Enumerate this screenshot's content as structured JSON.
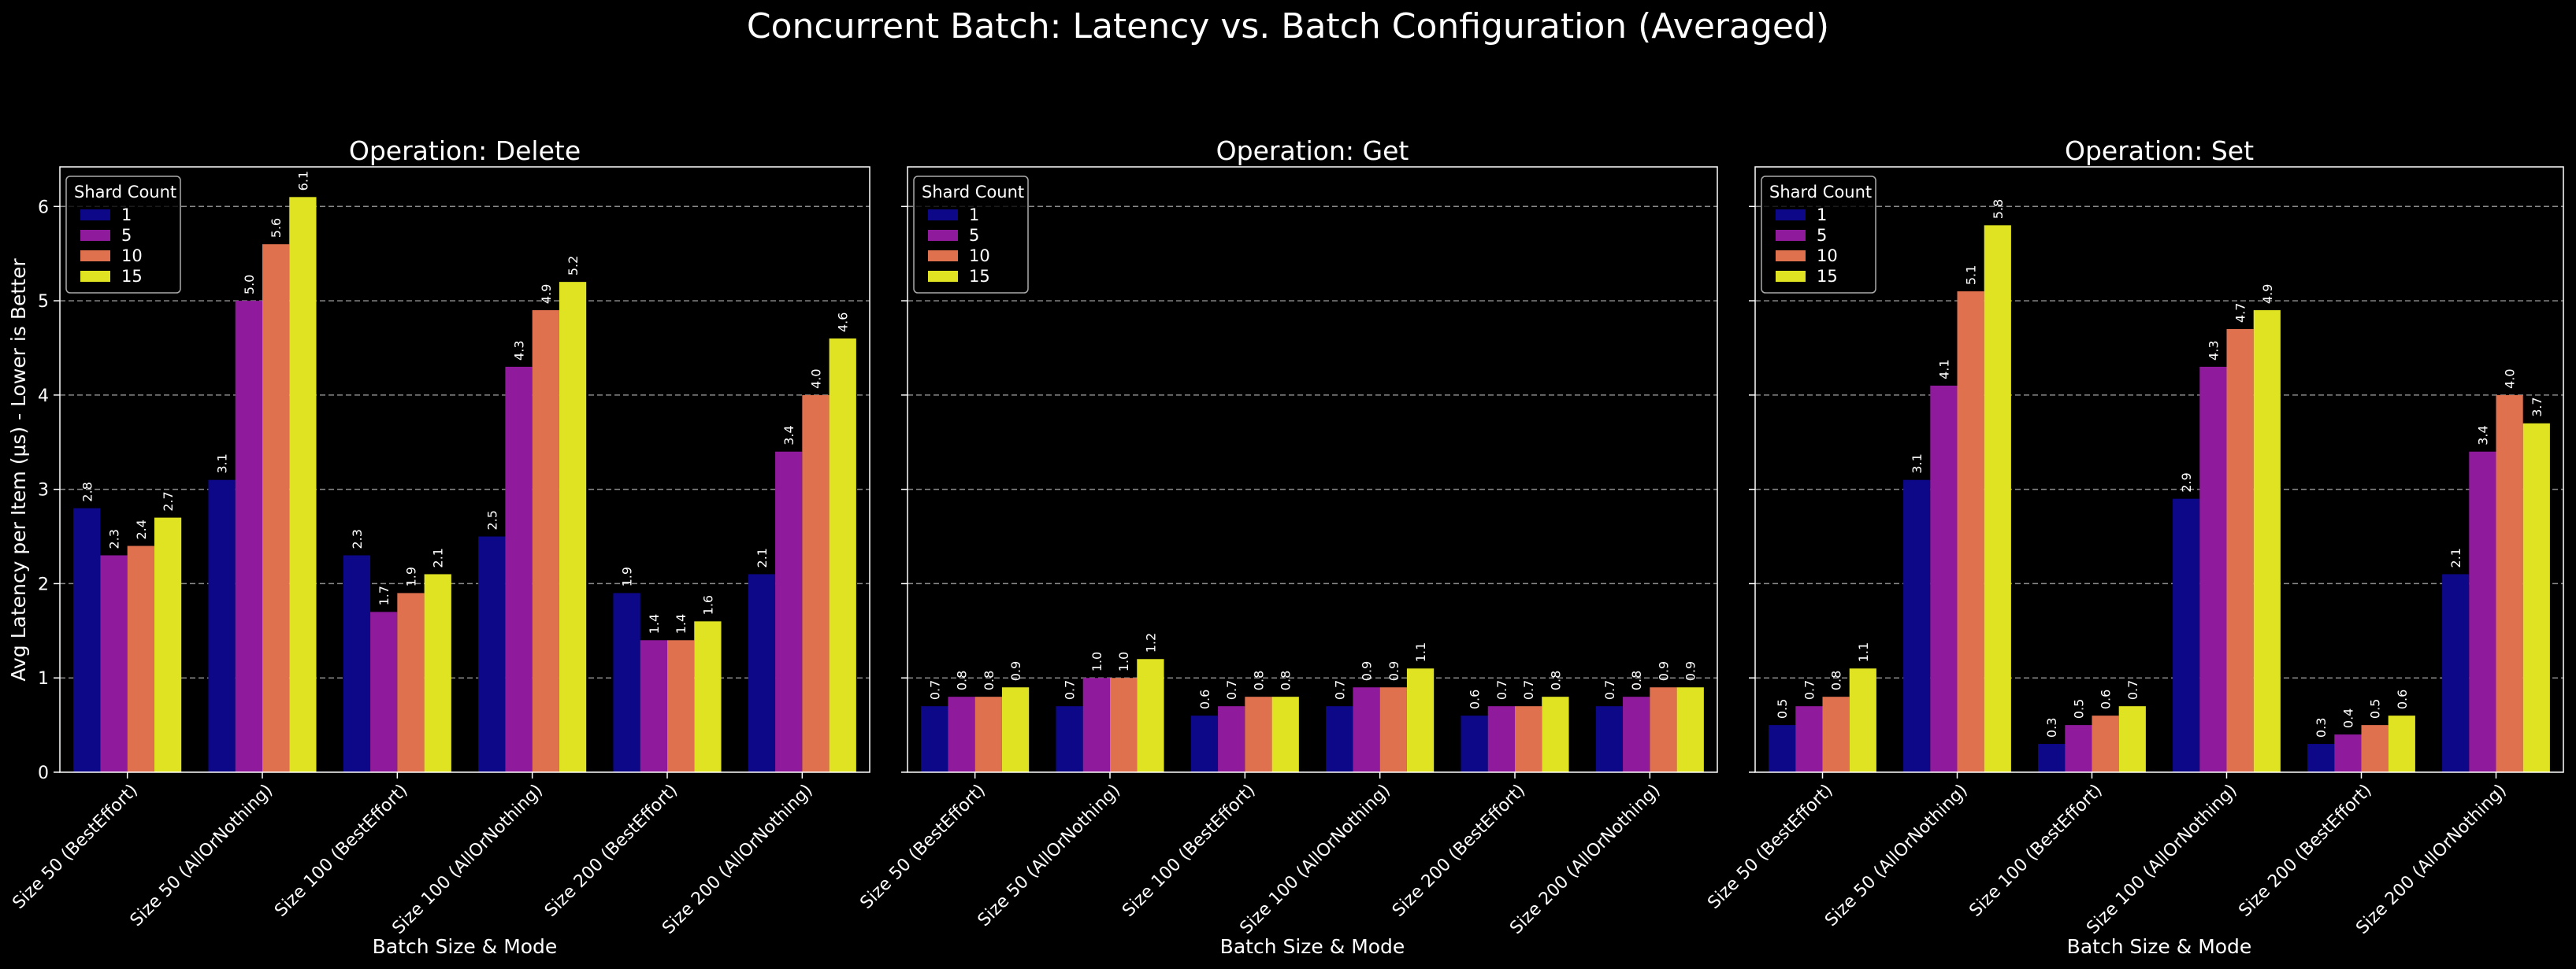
{
  "figure_title": "Concurrent Batch: Latency vs. Batch Configuration (Averaged)",
  "ylabel": "Avg Latency per Item (µs) - Lower is Better",
  "colors": {
    "background": "#000000",
    "text": "#ffffff",
    "grid": "#8a8a8a",
    "series": [
      "#0d0887",
      "#8f1a9c",
      "#e0714f",
      "#dfe321"
    ]
  },
  "chart_data": [
    {
      "type": "bar",
      "title": "Operation: Delete",
      "xlabel": "Batch Size & Mode",
      "categories": [
        "Size 50 (BestEffort)",
        "Size 50 (AllOrNothing)",
        "Size 100 (BestEffort)",
        "Size 100 (AllOrNothing)",
        "Size 200 (BestEffort)",
        "Size 200 (AllOrNothing)"
      ],
      "ylim": [
        0,
        6.42
      ],
      "yticks": [
        "0",
        "1",
        "2",
        "3",
        "4",
        "5",
        "6"
      ],
      "grid": true,
      "legend": {
        "title": "Shard Count",
        "placement": "top-left"
      },
      "series": [
        {
          "name": "1",
          "values": [
            2.8,
            3.1,
            2.3,
            2.5,
            1.9,
            2.1
          ],
          "labels": [
            "2.8",
            "3.1",
            "2.3",
            "2.5",
            "1.9",
            "2.1"
          ]
        },
        {
          "name": "5",
          "values": [
            2.3,
            5.0,
            1.7,
            4.3,
            1.4,
            3.4
          ],
          "labels": [
            "2.3",
            "5.0",
            "1.7",
            "4.3",
            "1.4",
            "3.4"
          ]
        },
        {
          "name": "10",
          "values": [
            2.4,
            5.6,
            1.9,
            4.9,
            1.4,
            4.0
          ],
          "labels": [
            "2.4",
            "5.6",
            "1.9",
            "4.9",
            "1.4",
            "4.0"
          ]
        },
        {
          "name": "15",
          "values": [
            2.7,
            6.1,
            2.1,
            5.2,
            1.6,
            4.6
          ],
          "labels": [
            "2.7",
            "6.1",
            "2.1",
            "5.2",
            "1.6",
            "4.6"
          ]
        }
      ]
    },
    {
      "type": "bar",
      "title": "Operation: Get",
      "xlabel": "Batch Size & Mode",
      "categories": [
        "Size 50 (BestEffort)",
        "Size 50 (AllOrNothing)",
        "Size 100 (BestEffort)",
        "Size 100 (AllOrNothing)",
        "Size 200 (BestEffort)",
        "Size 200 (AllOrNothing)"
      ],
      "ylim": [
        0,
        6.42
      ],
      "yticks": [
        "0",
        "1",
        "2",
        "3",
        "4",
        "5",
        "6"
      ],
      "grid": true,
      "legend": {
        "title": "Shard Count",
        "placement": "top-left"
      },
      "series": [
        {
          "name": "1",
          "values": [
            0.7,
            0.7,
            0.6,
            0.7,
            0.6,
            0.7
          ],
          "labels": [
            "0.7",
            "0.7",
            "0.6",
            "0.7",
            "0.6",
            "0.7"
          ]
        },
        {
          "name": "5",
          "values": [
            0.8,
            1.0,
            0.7,
            0.9,
            0.7,
            0.8
          ],
          "labels": [
            "0.8",
            "1.0",
            "0.7",
            "0.9",
            "0.7",
            "0.8"
          ]
        },
        {
          "name": "10",
          "values": [
            0.8,
            1.0,
            0.8,
            0.9,
            0.7,
            0.9
          ],
          "labels": [
            "0.8",
            "1.0",
            "0.8",
            "0.9",
            "0.7",
            "0.9"
          ]
        },
        {
          "name": "15",
          "values": [
            0.9,
            1.2,
            0.8,
            1.1,
            0.8,
            0.9
          ],
          "labels": [
            "0.9",
            "1.2",
            "0.8",
            "1.1",
            "0.8",
            "0.9"
          ]
        }
      ]
    },
    {
      "type": "bar",
      "title": "Operation: Set",
      "xlabel": "Batch Size & Mode",
      "categories": [
        "Size 50 (BestEffort)",
        "Size 50 (AllOrNothing)",
        "Size 100 (BestEffort)",
        "Size 100 (AllOrNothing)",
        "Size 200 (BestEffort)",
        "Size 200 (AllOrNothing)"
      ],
      "ylim": [
        0,
        6.42
      ],
      "yticks": [
        "0",
        "1",
        "2",
        "3",
        "4",
        "5",
        "6"
      ],
      "grid": true,
      "legend": {
        "title": "Shard Count",
        "placement": "top-left"
      },
      "series": [
        {
          "name": "1",
          "values": [
            0.5,
            3.1,
            0.3,
            2.9,
            0.3,
            2.1
          ],
          "labels": [
            "0.5",
            "3.1",
            "0.3",
            "2.9",
            "0.3",
            "2.1"
          ]
        },
        {
          "name": "5",
          "values": [
            0.7,
            4.1,
            0.5,
            4.3,
            0.4,
            3.4
          ],
          "labels": [
            "0.7",
            "4.1",
            "0.5",
            "4.3",
            "0.4",
            "3.4"
          ]
        },
        {
          "name": "10",
          "values": [
            0.8,
            5.1,
            0.6,
            4.7,
            0.5,
            4.0
          ],
          "labels": [
            "0.8",
            "5.1",
            "0.6",
            "4.7",
            "0.5",
            "4.0"
          ]
        },
        {
          "name": "15",
          "values": [
            1.1,
            5.8,
            0.7,
            4.9,
            0.6,
            3.7
          ],
          "labels": [
            "1.1",
            "5.8",
            "0.7",
            "4.9",
            "0.6",
            "3.7"
          ]
        }
      ]
    }
  ]
}
